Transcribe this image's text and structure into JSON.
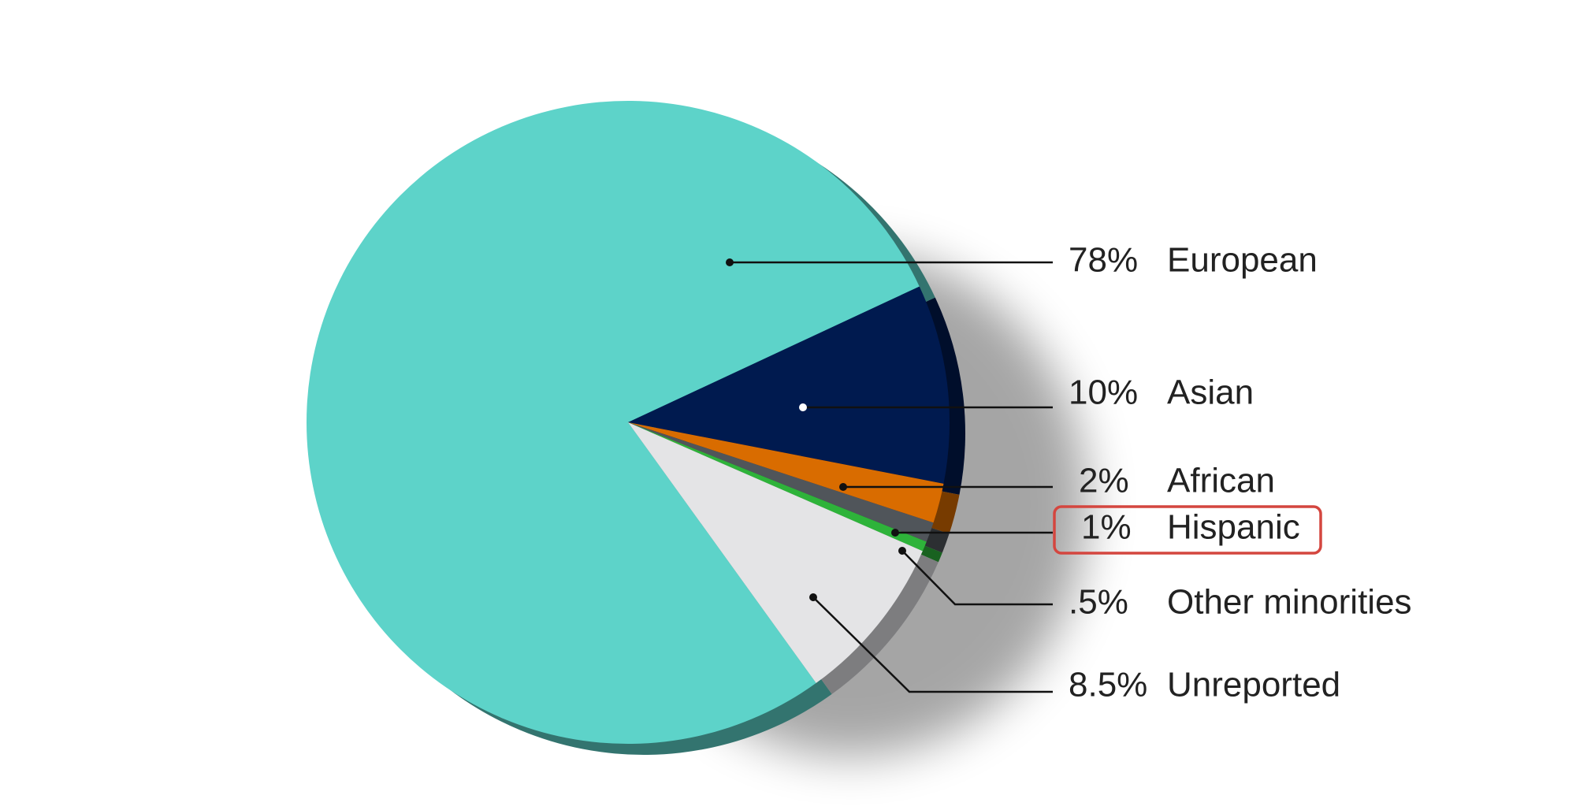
{
  "chart_data": {
    "type": "pie",
    "categories": [
      "European",
      "Asian",
      "African",
      "Hispanic",
      "Other minorities",
      "Unreported"
    ],
    "values": [
      78,
      10,
      2,
      1,
      0.5,
      8.5
    ],
    "value_labels": [
      "78%",
      "10%",
      "2%",
      "1%",
      ".5%",
      "8.5%"
    ],
    "colors": [
      "#5dd3c9",
      "#001a4f",
      "#d96c00",
      "#50555a",
      "#2eb33a",
      "#e4e4e6"
    ],
    "highlight": "Hispanic"
  }
}
